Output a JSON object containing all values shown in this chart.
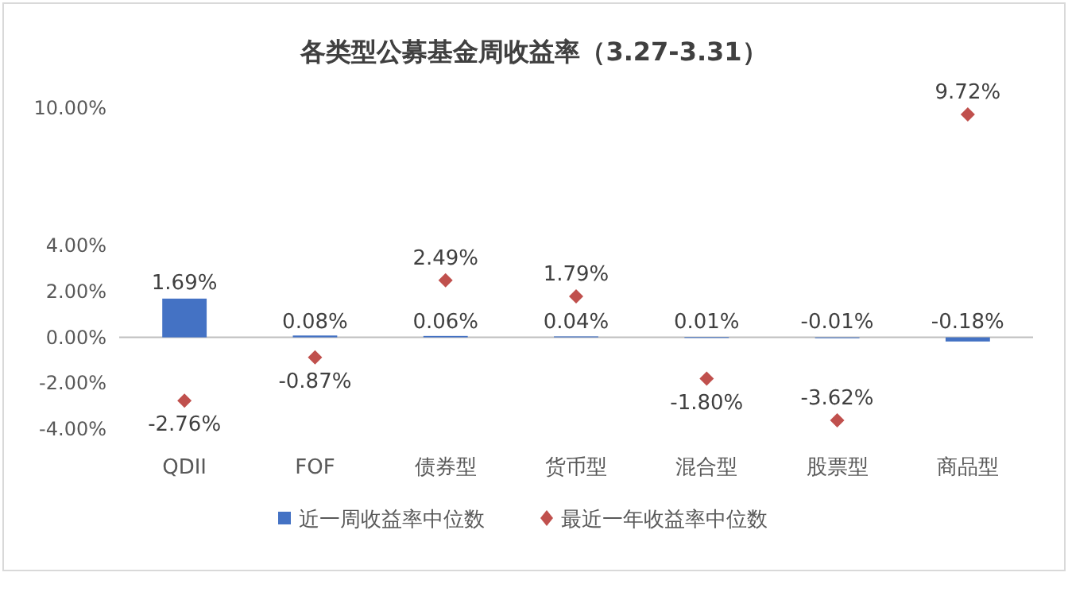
{
  "chart_data": {
    "type": "bar",
    "title": "各类型公募基金周收益率（3.27-3.31）",
    "categories": [
      "QDII",
      "FOF",
      "债券型",
      "货币型",
      "混合型",
      "股票型",
      "商品型"
    ],
    "series": [
      {
        "name": "近一周收益率中位数",
        "color": "#4472c4",
        "values": [
          1.69,
          0.08,
          0.06,
          0.04,
          0.01,
          -0.01,
          -0.18
        ],
        "value_labels": [
          "1.69%",
          "0.08%",
          "0.06%",
          "0.04%",
          "0.01%",
          "-0.01%",
          "-0.18%"
        ]
      },
      {
        "name": "最近一年收益率中位数",
        "type": "scatter",
        "marker": "diamond",
        "color": "#c0504d",
        "values": [
          -2.76,
          -0.87,
          2.49,
          1.79,
          -1.8,
          -3.62,
          9.72
        ],
        "value_labels": [
          "-2.76%",
          "-0.87%",
          "2.49%",
          "1.79%",
          "-1.80%",
          "-3.62%",
          "9.72%"
        ]
      }
    ],
    "ylim": [
      -4,
      10
    ],
    "yticks": [
      {
        "value": -4,
        "label": "-4.00%"
      },
      {
        "value": -2,
        "label": "-2.00%"
      },
      {
        "value": 0,
        "label": "0.00%"
      },
      {
        "value": 2,
        "label": "2.00%"
      },
      {
        "value": 4,
        "label": "4.00%"
      },
      {
        "value": 10,
        "label": "10.00%"
      }
    ],
    "legend": "bottom"
  }
}
